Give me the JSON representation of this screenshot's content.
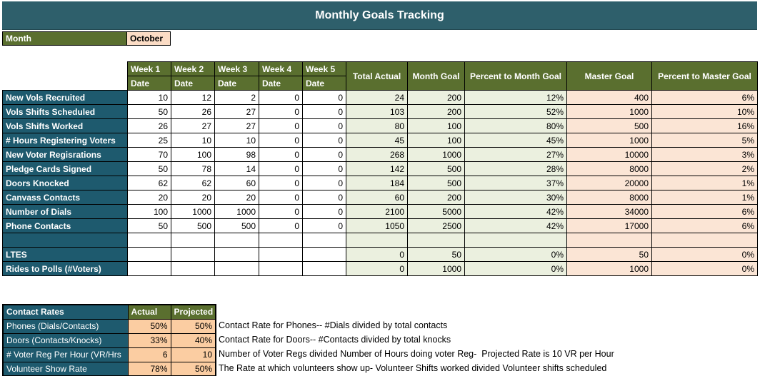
{
  "title": "Monthly Goals Tracking",
  "month": {
    "label": "Month",
    "value": "October"
  },
  "colors": {
    "title_teal": "#2E5F6B",
    "label_teal": "#1E5A6E",
    "olive_green": "#5A6F2F",
    "pale_green_cell": "#EBF0DF",
    "light_peach_cell": "#FBE5D5",
    "month_value_peach": "#FBDCC5",
    "contact_value_peach": "#FBCDA2"
  },
  "table": {
    "week_headers": [
      "Week 1",
      "Week 2",
      "Week 3",
      "Week 4",
      "Week 5"
    ],
    "week_subheader": "Date",
    "summary_headers": [
      "Total Actual",
      "Month Goal",
      "Percent to Month Goal",
      "Master Goal",
      "Percent to Master Goal"
    ],
    "rows": [
      {
        "label": "New Vols Recruited",
        "weeks": [
          "10",
          "12",
          "2",
          "0",
          "0"
        ],
        "total_actual": "24",
        "month_goal": "200",
        "pct_month": "12%",
        "master_goal": "400",
        "pct_master": "6%"
      },
      {
        "label": "Vols Shifts Scheduled",
        "weeks": [
          "50",
          "26",
          "27",
          "0",
          "0"
        ],
        "total_actual": "103",
        "month_goal": "200",
        "pct_month": "52%",
        "master_goal": "1000",
        "pct_master": "10%"
      },
      {
        "label": "Vols Shifts Worked",
        "weeks": [
          "26",
          "27",
          "27",
          "0",
          "0"
        ],
        "total_actual": "80",
        "month_goal": "100",
        "pct_month": "80%",
        "master_goal": "500",
        "pct_master": "16%"
      },
      {
        "label": "# Hours Registering Voters",
        "weeks": [
          "25",
          "10",
          "10",
          "0",
          "0"
        ],
        "total_actual": "45",
        "month_goal": "100",
        "pct_month": "45%",
        "master_goal": "1000",
        "pct_master": "5%"
      },
      {
        "label": "New Voter Regisrations",
        "weeks": [
          "70",
          "100",
          "98",
          "0",
          "0"
        ],
        "total_actual": "268",
        "month_goal": "1000",
        "pct_month": "27%",
        "master_goal": "10000",
        "pct_master": "3%"
      },
      {
        "label": "Pledge Cards Signed",
        "weeks": [
          "50",
          "78",
          "14",
          "0",
          "0"
        ],
        "total_actual": "142",
        "month_goal": "500",
        "pct_month": "28%",
        "master_goal": "8000",
        "pct_master": "2%"
      },
      {
        "label": "Doors Knocked",
        "weeks": [
          "62",
          "62",
          "60",
          "0",
          "0"
        ],
        "total_actual": "184",
        "month_goal": "500",
        "pct_month": "37%",
        "master_goal": "20000",
        "pct_master": "1%"
      },
      {
        "label": "Canvass Contacts",
        "weeks": [
          "20",
          "20",
          "20",
          "0",
          "0"
        ],
        "total_actual": "60",
        "month_goal": "200",
        "pct_month": "30%",
        "master_goal": "8000",
        "pct_master": "1%"
      },
      {
        "label": "Number of Dials",
        "weeks": [
          "100",
          "1000",
          "1000",
          "0",
          "0"
        ],
        "total_actual": "2100",
        "month_goal": "5000",
        "pct_month": "42%",
        "master_goal": "34000",
        "pct_master": "6%"
      },
      {
        "label": "Phone Contacts",
        "weeks": [
          "50",
          "500",
          "500",
          "0",
          "0"
        ],
        "total_actual": "1050",
        "month_goal": "2500",
        "pct_month": "42%",
        "master_goal": "17000",
        "pct_master": "6%"
      },
      {
        "label": "",
        "weeks": [
          "",
          "",
          "",
          "",
          ""
        ],
        "total_actual": "",
        "month_goal": "",
        "pct_month": "",
        "master_goal": "",
        "pct_master": ""
      },
      {
        "label": "LTES",
        "weeks": [
          "",
          "",
          "",
          "",
          ""
        ],
        "total_actual": "0",
        "month_goal": "50",
        "pct_month": "0%",
        "master_goal": "50",
        "pct_master": "0%"
      },
      {
        "label": "Rides to Polls (#Voters)",
        "weeks": [
          "",
          "",
          "",
          "",
          ""
        ],
        "total_actual": "0",
        "month_goal": "1000",
        "pct_month": "0%",
        "master_goal": "1000",
        "pct_master": "0%"
      }
    ]
  },
  "contact_rates": {
    "title": "Contact Rates",
    "col_headers": [
      "Actual",
      "Projected"
    ],
    "rows": [
      {
        "label": "Phones (Dials/Contacts)",
        "actual": "50%",
        "projected": "50%",
        "note": "Contact Rate for Phones-- #Dials divided by total contacts"
      },
      {
        "label": "Doors (Contacts/Knocks)",
        "actual": "33%",
        "projected": "40%",
        "note": "Contact Rate for Doors-- #Contacts divided by total knocks"
      },
      {
        "label": "# Voter Reg Per Hour (VR/Hrs",
        "actual": "6",
        "projected": "10",
        "note": "Number of Voter Regs divided Number of Hours doing voter Reg-  Projected Rate is 10 VR per Hour"
      },
      {
        "label": "Volunteer Show Rate",
        "actual": "78%",
        "projected": "50%",
        "note": "The Rate at which volunteers show up- Volunteer Shifts worked divided Volunteer shifts scheduled"
      }
    ]
  }
}
